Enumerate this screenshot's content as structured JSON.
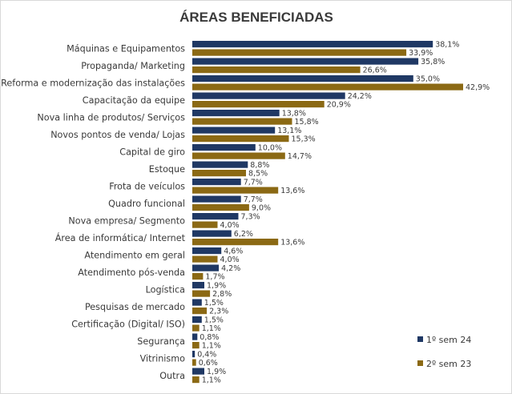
{
  "chart_data": {
    "type": "bar",
    "orientation": "horizontal",
    "title": "ÁREAS BENEFICIADAS",
    "categories": [
      "Máquinas e Equipamentos",
      "Propaganda/ Marketing",
      "Reforma e modernização das instalações",
      "Capacitação da equipe",
      "Nova linha de produtos/ Serviços",
      "Novos pontos de venda/ Lojas",
      "Capital de giro",
      "Estoque",
      "Frota de veículos",
      "Quadro funcional",
      "Nova empresa/ Segmento",
      "Área de informática/ Internet",
      "Atendimento em geral",
      "Atendimento pós-venda",
      "Logística",
      "Pesquisas de mercado",
      "Certificação (Digital/ ISO)",
      "Segurança",
      "Vitrinismo",
      "Outra"
    ],
    "series": [
      {
        "name": "1º sem 24",
        "color": "#1f3864",
        "values": [
          38.1,
          35.8,
          35.0,
          24.2,
          13.8,
          13.1,
          10.0,
          8.8,
          7.7,
          7.7,
          7.3,
          6.2,
          4.6,
          4.2,
          1.9,
          1.5,
          1.5,
          0.8,
          0.4,
          1.9
        ],
        "labels": [
          "38,1%",
          "35,8%",
          "35,0%",
          "24,2%",
          "13,8%",
          "13,1%",
          "10,0%",
          "8,8%",
          "7,7%",
          "7,7%",
          "7,3%",
          "6,2%",
          "4,6%",
          "4,2%",
          "1,9%",
          "1,5%",
          "1,5%",
          "0,8%",
          "0,4%",
          "1,9%"
        ]
      },
      {
        "name": "2º sem 23",
        "color": "#8b6914",
        "values": [
          33.9,
          26.6,
          42.9,
          20.9,
          15.8,
          15.3,
          14.7,
          8.5,
          13.6,
          9.0,
          4.0,
          13.6,
          4.0,
          1.7,
          2.8,
          2.3,
          1.1,
          1.1,
          0.6,
          1.1
        ],
        "labels": [
          "33,9%",
          "26,6%",
          "42,9%",
          "20,9%",
          "15,8%",
          "15,3%",
          "14,7%",
          "8,5%",
          "13,6%",
          "9,0%",
          "4,0%",
          "13,6%",
          "4,0%",
          "1,7%",
          "2,8%",
          "2,3%",
          "1,1%",
          "1,1%",
          "0,6%",
          "1,1%"
        ]
      }
    ],
    "xlim": [
      0,
      45
    ],
    "grid": false,
    "legend_position": "bottom-right"
  }
}
